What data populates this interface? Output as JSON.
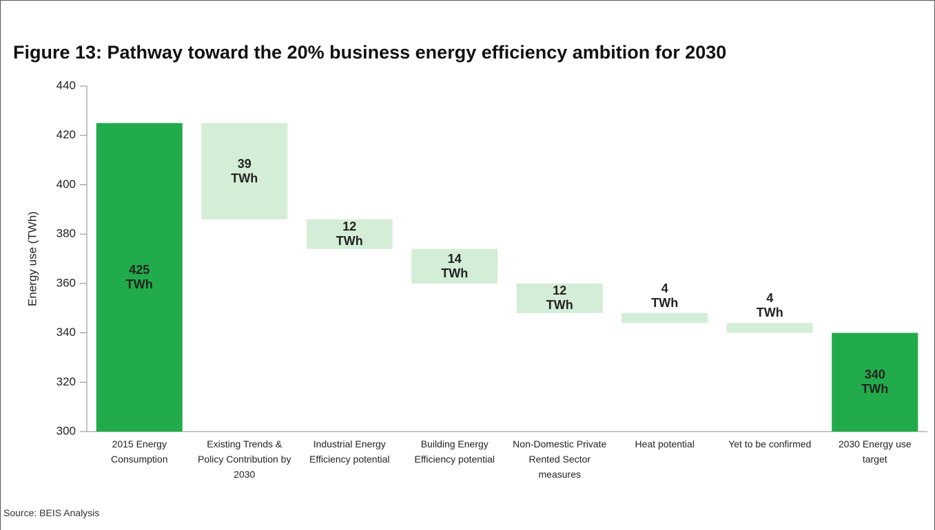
{
  "chart_data": {
    "type": "waterfall",
    "title": "Figure 13: Pathway toward the 20% business energy efficiency ambition for 2030",
    "y_label": "Energy use (TWh)",
    "source": "Source: BEIS Analysis",
    "categories": [
      "2015 Energy Consumption",
      "Existing Trends & Policy Contribution by 2030",
      "Industrial Energy Efficiency potential",
      "Building Energy Efficiency potential",
      "Non-Domestic Private Rented Sector measures",
      "Heat potential",
      "Yet to be confirmed",
      "2030 Energy use target"
    ],
    "values": [
      425,
      39,
      12,
      14,
      12,
      4,
      4,
      340
    ],
    "value_labels": [
      "425 TWh",
      "39 TWh",
      "12 TWh",
      "14 TWh",
      "12 TWh",
      "4 TWh",
      "4 TWh",
      "340 TWh"
    ],
    "measure": [
      "absolute",
      "decrease",
      "decrease",
      "decrease",
      "decrease",
      "decrease",
      "decrease",
      "total"
    ],
    "total_color": "#22ab4a",
    "decrease_color": "#d4edd6",
    "ylim": [
      300,
      440
    ],
    "yticks": [
      300,
      320,
      340,
      360,
      380,
      400,
      420,
      440
    ]
  }
}
